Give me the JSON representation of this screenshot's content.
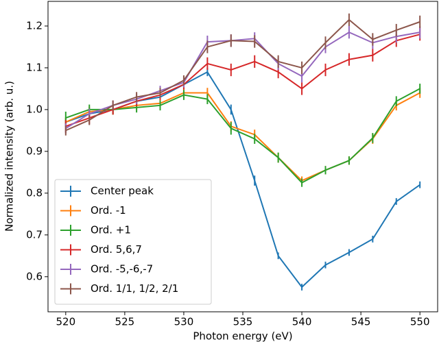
{
  "chart_data": {
    "type": "line",
    "xlabel": "Photon energy (eV)",
    "ylabel": "Normalized intensity (arb. u.)",
    "x": [
      520,
      522,
      524,
      526,
      528,
      530,
      532,
      534,
      536,
      538,
      540,
      542,
      544,
      546,
      548,
      550
    ],
    "xlim": [
      518.5,
      551.5
    ],
    "xticks": [
      520,
      525,
      530,
      535,
      540,
      545,
      550
    ],
    "ylim": [
      0.516,
      1.259
    ],
    "yticks": [
      0.6,
      0.7,
      0.8,
      0.9,
      {
        "value": 1.0,
        "label": "1.0"
      },
      1.1,
      1.2
    ],
    "legend": "lower left",
    "series": [
      {
        "name": "Center peak",
        "color": "#1f77b4",
        "values": [
          0.97,
          0.99,
          1.0,
          1.02,
          1.03,
          1.06,
          1.09,
          1.0,
          0.83,
          0.65,
          0.575,
          0.628,
          0.658,
          0.69,
          0.78,
          0.82
        ],
        "errors": [
          0.01,
          0.01,
          0.01,
          0.01,
          0.01,
          0.01,
          0.01,
          0.012,
          0.012,
          0.008,
          0.008,
          0.008,
          0.008,
          0.008,
          0.008,
          0.008
        ]
      },
      {
        "name": "Ord. -1",
        "color": "#ff7f0e",
        "values": [
          0.97,
          0.995,
          1.0,
          1.01,
          1.015,
          1.04,
          1.04,
          0.96,
          0.94,
          0.885,
          0.83,
          0.855,
          0.878,
          0.93,
          1.01,
          1.04
        ],
        "errors": [
          0.012,
          0.012,
          0.012,
          0.012,
          0.012,
          0.012,
          0.012,
          0.012,
          0.012,
          0.012,
          0.01,
          0.01,
          0.01,
          0.012,
          0.012,
          0.012
        ]
      },
      {
        "name": "Ord. +1",
        "color": "#2ca02c",
        "values": [
          0.98,
          1.0,
          1.0,
          1.005,
          1.01,
          1.035,
          1.025,
          0.955,
          0.93,
          0.885,
          0.825,
          0.855,
          0.878,
          0.932,
          1.02,
          1.05
        ],
        "errors": [
          0.015,
          0.012,
          0.012,
          0.012,
          0.012,
          0.012,
          0.012,
          0.015,
          0.012,
          0.012,
          0.01,
          0.01,
          0.01,
          0.012,
          0.012,
          0.012
        ]
      },
      {
        "name": "Ord. 5,6,7",
        "color": "#d62728",
        "values": [
          0.96,
          0.98,
          1.0,
          1.02,
          1.035,
          1.06,
          1.11,
          1.095,
          1.115,
          1.09,
          1.05,
          1.095,
          1.12,
          1.13,
          1.165,
          1.18
        ],
        "errors": [
          0.015,
          0.015,
          0.012,
          0.012,
          0.012,
          0.012,
          0.015,
          0.015,
          0.015,
          0.015,
          0.015,
          0.015,
          0.015,
          0.015,
          0.015,
          0.015
        ]
      },
      {
        "name": "Ord. -5,-6,-7",
        "color": "#9467bd",
        "values": [
          0.955,
          0.99,
          1.01,
          1.025,
          1.045,
          1.065,
          1.162,
          1.165,
          1.17,
          1.11,
          1.08,
          1.15,
          1.185,
          1.16,
          1.175,
          1.185
        ],
        "errors": [
          0.012,
          0.012,
          0.012,
          0.012,
          0.012,
          0.012,
          0.015,
          0.015,
          0.015,
          0.015,
          0.015,
          0.015,
          0.015,
          0.015,
          0.015,
          0.015
        ]
      },
      {
        "name": "Ord. 1/1, 1/2, 2/1",
        "color": "#8c564b",
        "values": [
          0.95,
          0.975,
          1.01,
          1.03,
          1.04,
          1.07,
          1.15,
          1.165,
          1.163,
          1.115,
          1.1,
          1.16,
          1.215,
          1.168,
          1.19,
          1.21
        ],
        "errors": [
          0.012,
          0.012,
          0.012,
          0.012,
          0.012,
          0.012,
          0.015,
          0.015,
          0.015,
          0.015,
          0.015,
          0.015,
          0.015,
          0.015,
          0.015,
          0.015
        ]
      }
    ]
  }
}
